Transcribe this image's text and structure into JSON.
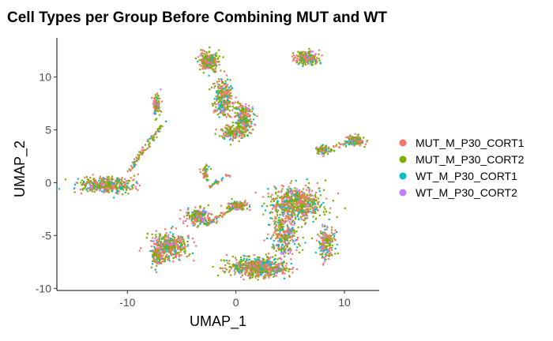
{
  "chart_data": {
    "type": "scatter",
    "title": "Cell Types per Group Before Combining MUT and WT",
    "xlabel": "UMAP_1",
    "ylabel": "UMAP_2",
    "xlim": [
      -16.5,
      13.2
    ],
    "ylim": [
      -10.2,
      13.7
    ],
    "xticks": [
      -10,
      0,
      10
    ],
    "yticks": [
      -10,
      -5,
      0,
      5,
      10
    ],
    "grid": false,
    "legend_position": "right",
    "series": [
      {
        "name": "MUT_M_P30_CORT1",
        "color": "#F8766D"
      },
      {
        "name": "MUT_M_P30_CORT2",
        "color": "#7CAE00"
      },
      {
        "name": "WT_M_P30_CORT1",
        "color": "#00BFC4"
      },
      {
        "name": "WT_M_P30_CORT2",
        "color": "#C77CFF"
      }
    ],
    "clusters": [
      {
        "cx": -12.0,
        "cy": -0.2,
        "sx": 2.0,
        "sy": 0.6,
        "n": 420
      },
      {
        "cx": -7.3,
        "cy": 7.3,
        "sx": 0.25,
        "sy": 0.9,
        "n": 90
      },
      {
        "cx": -2.5,
        "cy": 11.5,
        "sx": 0.7,
        "sy": 0.7,
        "n": 260
      },
      {
        "cx": -1.2,
        "cy": 8.0,
        "sx": 0.7,
        "sy": 1.5,
        "n": 280
      },
      {
        "cx": 0.7,
        "cy": 6.0,
        "sx": 0.7,
        "sy": 1.3,
        "n": 250
      },
      {
        "cx": -0.3,
        "cy": 4.8,
        "sx": 0.9,
        "sy": 0.5,
        "n": 150
      },
      {
        "cx": 6.5,
        "cy": 11.8,
        "sx": 0.9,
        "sy": 0.5,
        "n": 230
      },
      {
        "cx": 11.0,
        "cy": 4.0,
        "sx": 0.6,
        "sy": 0.4,
        "n": 160
      },
      {
        "cx": 8.0,
        "cy": 3.1,
        "sx": 0.5,
        "sy": 0.4,
        "n": 80
      },
      {
        "cx": -2.8,
        "cy": 1.0,
        "sx": 0.3,
        "sy": 0.6,
        "n": 50
      },
      {
        "cx": 5.5,
        "cy": -2.0,
        "sx": 2.0,
        "sy": 1.3,
        "n": 650
      },
      {
        "cx": 2.0,
        "cy": -8.0,
        "sx": 2.2,
        "sy": 0.8,
        "n": 600
      },
      {
        "cx": 4.5,
        "cy": -5.0,
        "sx": 1.0,
        "sy": 1.6,
        "n": 300
      },
      {
        "cx": 8.3,
        "cy": -5.6,
        "sx": 0.6,
        "sy": 1.2,
        "n": 200
      },
      {
        "cx": -6.0,
        "cy": -6.0,
        "sx": 1.3,
        "sy": 1.0,
        "n": 400
      },
      {
        "cx": -3.5,
        "cy": -3.2,
        "sx": 1.0,
        "sy": 0.7,
        "n": 200
      },
      {
        "cx": -7.2,
        "cy": -6.8,
        "sx": 0.4,
        "sy": 0.9,
        "n": 130
      },
      {
        "cx": 0.2,
        "cy": -2.2,
        "sx": 0.8,
        "sy": 0.4,
        "n": 120
      }
    ],
    "filaments": [
      {
        "from": [
          -10.0,
          1.0
        ],
        "to": [
          -6.6,
          5.7
        ],
        "n": 90
      },
      {
        "from": [
          -2.6,
          -0.5
        ],
        "to": [
          -0.7,
          0.7
        ],
        "n": 30
      },
      {
        "from": [
          -2.8,
          -4.0
        ],
        "to": [
          0.0,
          -2.2
        ],
        "n": 60
      },
      {
        "from": [
          8.8,
          3.2
        ],
        "to": [
          10.5,
          3.8
        ],
        "n": 25
      }
    ]
  }
}
